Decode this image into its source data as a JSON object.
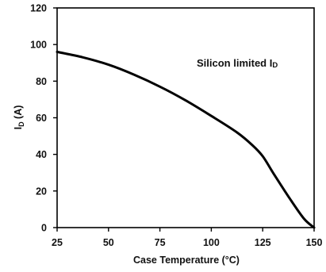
{
  "chart_data": {
    "type": "line",
    "title": "",
    "xlabel": "Case Temperature (°C)",
    "ylabel_main": "I",
    "ylabel_sub": "D",
    "ylabel_unit": " (A)",
    "xlim": [
      25,
      150
    ],
    "ylim": [
      0,
      120
    ],
    "xticks": [
      "25",
      "50",
      "75",
      "100",
      "125",
      "150"
    ],
    "yticks": [
      "0",
      "20",
      "40",
      "60",
      "80",
      "100",
      "120"
    ],
    "grid": false,
    "annotation_main": "Silicon limited I",
    "annotation_sub": "D",
    "series": [
      {
        "color": "#000000",
        "x": [
          25,
          37.5,
          50,
          62.5,
          75,
          87.5,
          100,
          112.5,
          120,
          125,
          130,
          137.5,
          145,
          150
        ],
        "y": [
          96,
          93,
          89,
          83.5,
          77,
          69.5,
          61,
          52,
          45,
          39,
          30,
          17,
          5,
          0
        ]
      }
    ]
  }
}
